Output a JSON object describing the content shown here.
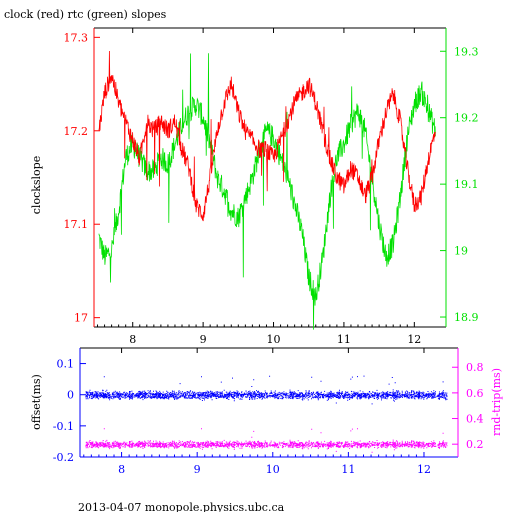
{
  "title": "clock (red) rtc (green) slopes",
  "footer": "2013-04-07 monopole.physics.ubc.ca",
  "colors": {
    "clock": "#ff0000",
    "rtc": "#00e000",
    "offset": "#0000ff",
    "rndtrip": "#ff00ff",
    "axis": "#000000"
  },
  "chart_data": [
    {
      "type": "line",
      "ylabel": "clockslope",
      "xlim": [
        7.45,
        12.45
      ],
      "ylim": [
        16.99,
        17.31
      ],
      "y2lim": [
        18.885,
        19.335
      ],
      "xticks": [
        8,
        9,
        10,
        11,
        12
      ],
      "xtick_labels": [
        "8",
        "9",
        "10",
        "11",
        "12"
      ],
      "yticks": [
        17,
        17.1,
        17.2,
        17.3
      ],
      "ytick_labels": [
        "17",
        "17.1",
        "17.2",
        "17.3"
      ],
      "y2ticks": [
        18.9,
        19,
        19.1,
        19.2,
        19.3
      ],
      "y2tick_labels": [
        "18.9",
        "19",
        "19.1",
        "19.2",
        "19.3"
      ],
      "grid": false,
      "series": [
        {
          "axis": "left",
          "x": [
            7.52,
            7.6,
            7.7,
            7.8,
            7.9,
            8.0,
            8.1,
            8.2,
            8.3,
            8.4,
            8.5,
            8.6,
            8.7,
            8.8,
            8.9,
            9.0,
            9.1,
            9.2,
            9.3,
            9.4,
            9.5,
            9.6,
            9.7,
            9.8,
            9.9,
            10.0,
            10.1,
            10.2,
            10.3,
            10.4,
            10.5,
            10.6,
            10.7,
            10.8,
            10.9,
            11.0,
            11.1,
            11.2,
            11.3,
            11.4,
            11.5,
            11.6,
            11.7,
            11.8,
            11.9,
            12.0,
            12.1,
            12.2,
            12.3
          ],
          "y": [
            17.2,
            17.24,
            17.26,
            17.23,
            17.21,
            17.19,
            17.17,
            17.21,
            17.2,
            17.21,
            17.2,
            17.21,
            17.18,
            17.16,
            17.12,
            17.11,
            17.15,
            17.2,
            17.23,
            17.25,
            17.22,
            17.2,
            17.19,
            17.18,
            17.18,
            17.17,
            17.19,
            17.21,
            17.23,
            17.24,
            17.25,
            17.23,
            17.2,
            17.17,
            17.15,
            17.14,
            17.16,
            17.15,
            17.13,
            17.15,
            17.19,
            17.22,
            17.24,
            17.21,
            17.16,
            17.12,
            17.13,
            17.17,
            17.2
          ]
        },
        {
          "axis": "right",
          "x": [
            7.52,
            7.6,
            7.7,
            7.8,
            7.9,
            8.0,
            8.1,
            8.2,
            8.3,
            8.4,
            8.5,
            8.6,
            8.7,
            8.8,
            8.9,
            9.0,
            9.1,
            9.2,
            9.3,
            9.4,
            9.5,
            9.6,
            9.7,
            9.8,
            9.9,
            10.0,
            10.1,
            10.2,
            10.3,
            10.4,
            10.5,
            10.6,
            10.7,
            10.8,
            10.9,
            11.0,
            11.1,
            11.2,
            11.3,
            11.4,
            11.5,
            11.6,
            11.7,
            11.8,
            11.9,
            12.0,
            12.1,
            12.2,
            12.3
          ],
          "y": [
            19.02,
            18.99,
            19.0,
            19.06,
            19.14,
            19.16,
            19.14,
            19.12,
            19.12,
            19.14,
            19.13,
            19.16,
            19.19,
            19.21,
            19.22,
            19.2,
            19.16,
            19.11,
            19.09,
            19.06,
            19.05,
            19.08,
            19.11,
            19.15,
            19.18,
            19.17,
            19.14,
            19.11,
            19.07,
            19.03,
            18.96,
            18.93,
            18.99,
            19.08,
            19.14,
            19.16,
            19.19,
            19.21,
            19.18,
            19.11,
            19.04,
            18.99,
            19.01,
            19.08,
            19.17,
            19.22,
            19.24,
            19.21,
            19.18
          ]
        }
      ]
    },
    {
      "type": "scatter",
      "ylabel": "offset(ms)",
      "y2label": "rnd-trip(ms)",
      "xlim": [
        7.45,
        12.45
      ],
      "ylim": [
        -0.2,
        0.15
      ],
      "y2lim": [
        0.1,
        0.95
      ],
      "xticks": [
        8,
        9,
        10,
        11,
        12
      ],
      "xtick_labels": [
        "8",
        "9",
        "10",
        "11",
        "12"
      ],
      "yticks": [
        -0.2,
        -0.1,
        0,
        0.1
      ],
      "ytick_labels": [
        "-0.2",
        "-0.1",
        "0",
        "0.1"
      ],
      "y2ticks": [
        0.2,
        0.4,
        0.6,
        0.8
      ],
      "y2tick_labels": [
        "0.2",
        "0.4",
        "0.6",
        "0.8"
      ],
      "grid": false,
      "series": [
        {
          "axis": "left",
          "x_range": [
            7.52,
            12.3
          ],
          "y_center": 0.0,
          "y_spread": 0.012
        },
        {
          "axis": "right",
          "x_range": [
            7.52,
            12.3
          ],
          "y_center": 0.2,
          "y_spread": 0.025
        }
      ]
    }
  ]
}
